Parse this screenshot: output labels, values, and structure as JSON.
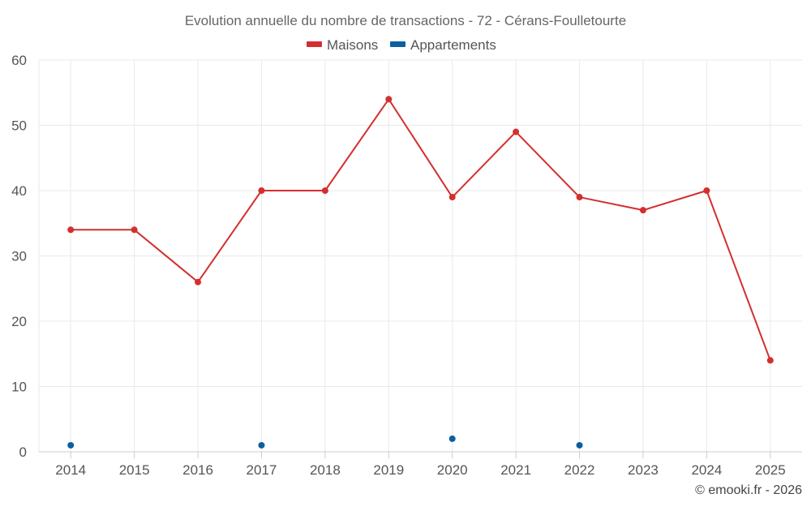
{
  "chart_data": {
    "type": "line",
    "title": "Evolution annuelle du nombre de transactions - 72 - Cérans-Foulletourte",
    "categories": [
      "2014",
      "2015",
      "2016",
      "2017",
      "2018",
      "2019",
      "2020",
      "2021",
      "2022",
      "2023",
      "2024",
      "2025"
    ],
    "series": [
      {
        "name": "Maisons",
        "color": "#d32f2f",
        "values": [
          34,
          34,
          26,
          40,
          40,
          54,
          39,
          49,
          39,
          37,
          40,
          14
        ]
      },
      {
        "name": "Appartements",
        "color": "#0d5f9e",
        "values": [
          1,
          null,
          null,
          1,
          null,
          null,
          2,
          null,
          1,
          null,
          null,
          null
        ]
      }
    ],
    "ylim": [
      0,
      60
    ],
    "yticks": [
      "0",
      "10",
      "20",
      "30",
      "40",
      "50",
      "60"
    ],
    "grid": true,
    "legend_position": "top-center"
  },
  "credit": "© emooki.fr - 2026"
}
